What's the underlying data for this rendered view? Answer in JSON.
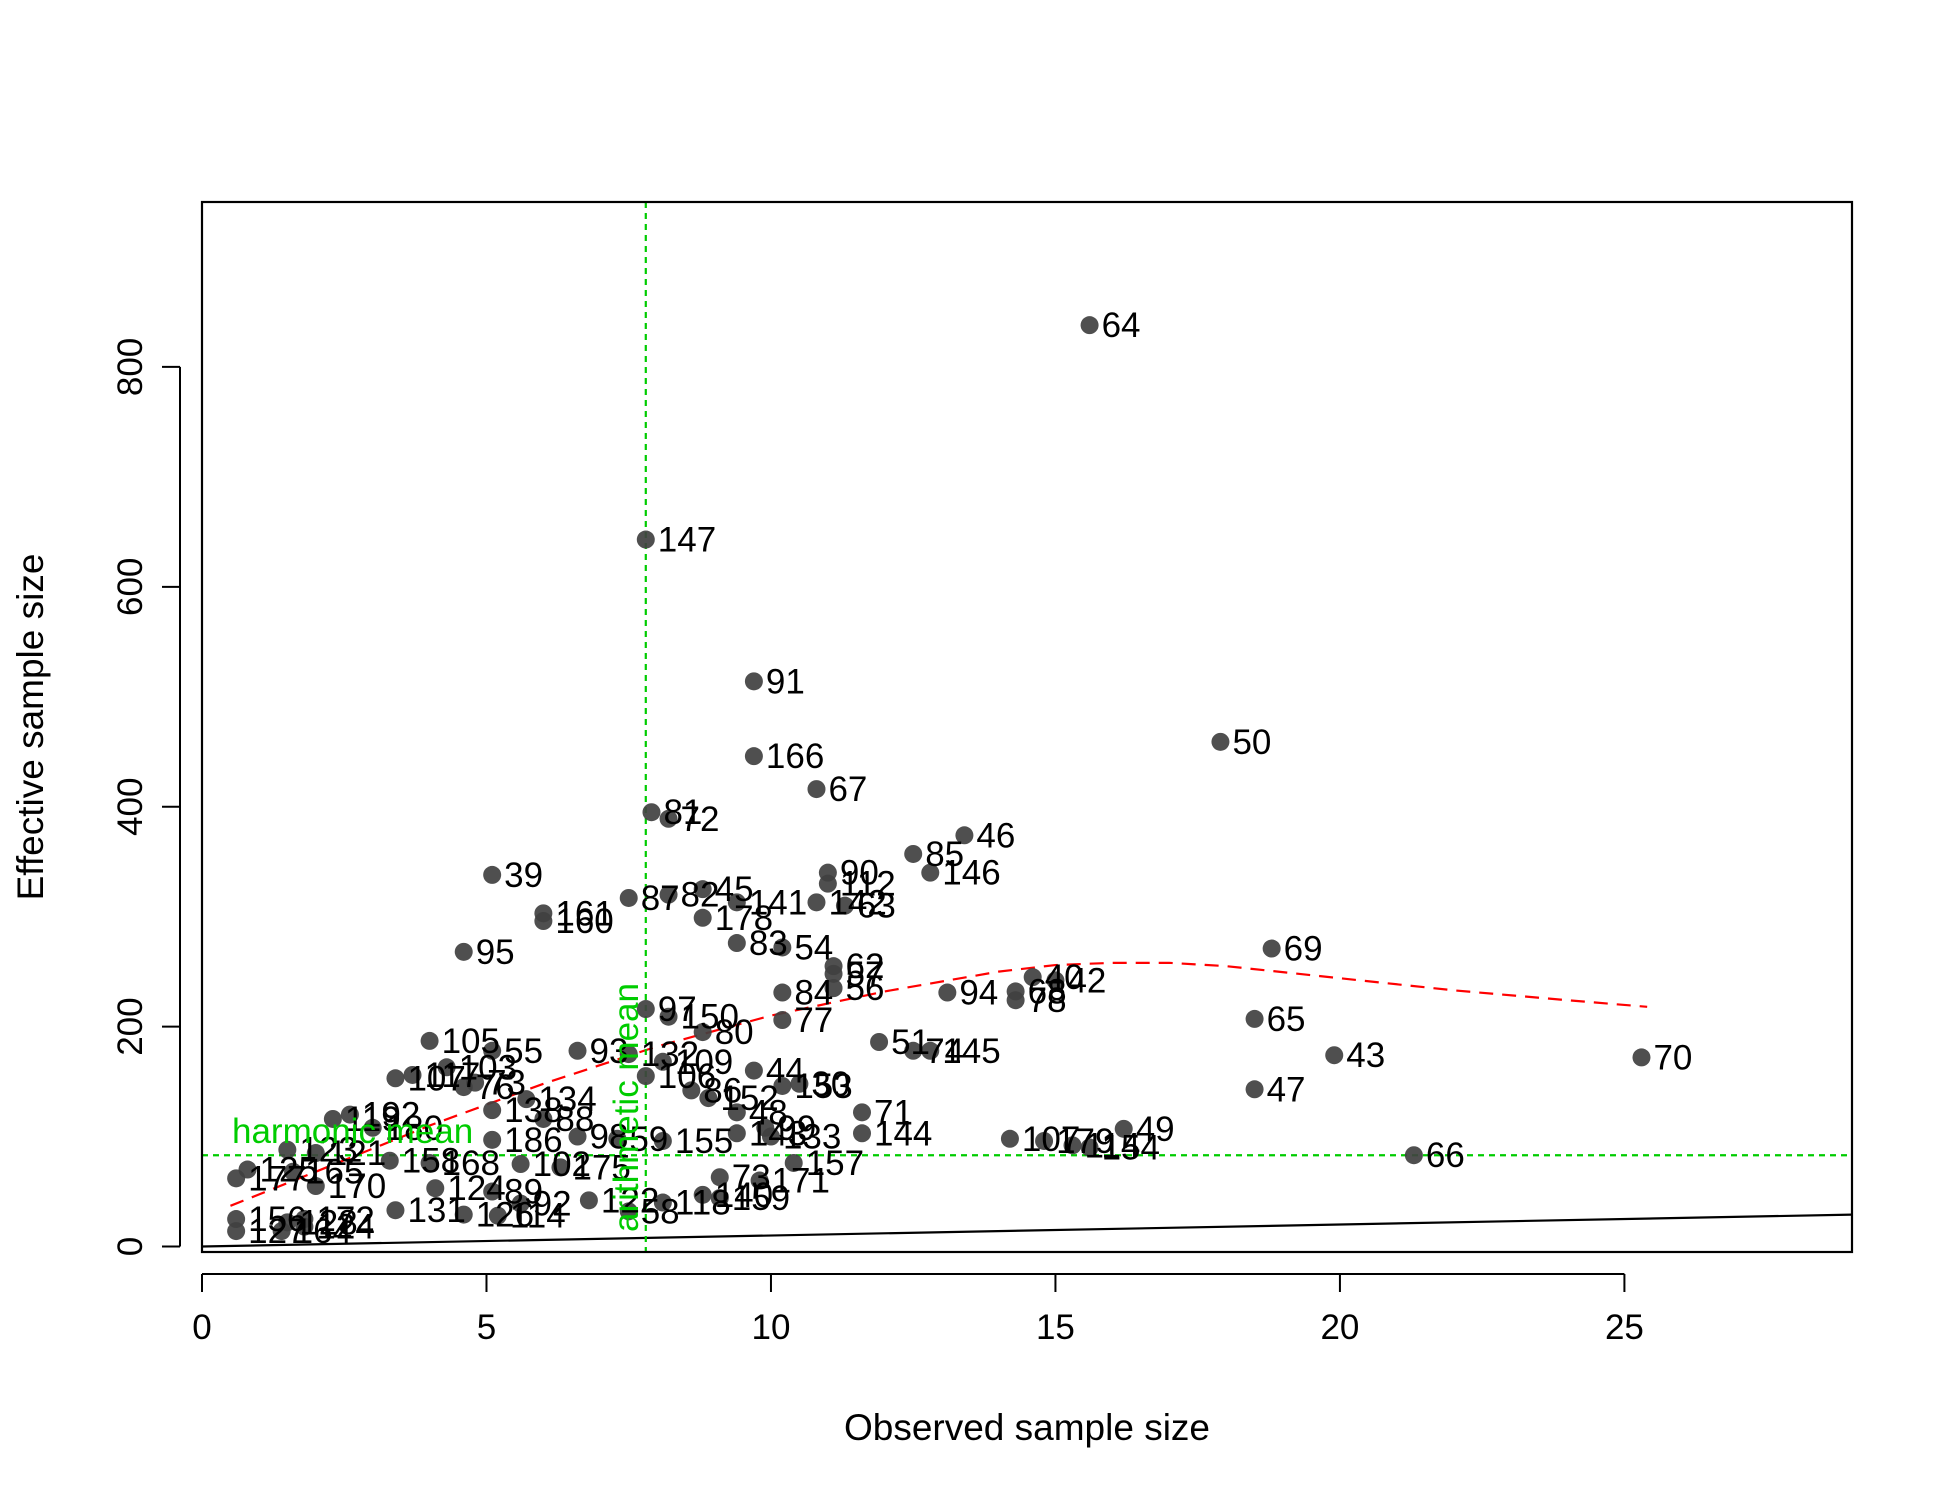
{
  "chart_data": {
    "type": "scatter",
    "title": "",
    "xlabel": "Observed sample size",
    "ylabel": "Effective sample size",
    "xlim": [
      0,
      29
    ],
    "ylim": [
      -5,
      950
    ],
    "x_ticks": [
      0,
      5,
      10,
      15,
      20,
      25
    ],
    "y_ticks": [
      0,
      200,
      400,
      600,
      800
    ],
    "grid": false,
    "point_color": "#404040",
    "points": [
      {
        "x": 15.6,
        "y": 838,
        "label": "64"
      },
      {
        "x": 7.8,
        "y": 643,
        "label": "147"
      },
      {
        "x": 9.7,
        "y": 514,
        "label": "91"
      },
      {
        "x": 17.9,
        "y": 459,
        "label": "50"
      },
      {
        "x": 9.7,
        "y": 446,
        "label": "166"
      },
      {
        "x": 10.8,
        "y": 416,
        "label": "67"
      },
      {
        "x": 7.9,
        "y": 395,
        "label": "81"
      },
      {
        "x": 8.2,
        "y": 389,
        "label": "72"
      },
      {
        "x": 13.4,
        "y": 374,
        "label": "46"
      },
      {
        "x": 12.5,
        "y": 357,
        "label": "85"
      },
      {
        "x": 12.8,
        "y": 340,
        "label": "146"
      },
      {
        "x": 5.1,
        "y": 338,
        "label": "39"
      },
      {
        "x": 11.0,
        "y": 340,
        "label": "90"
      },
      {
        "x": 11.0,
        "y": 330,
        "label": "112"
      },
      {
        "x": 8.8,
        "y": 325,
        "label": "45"
      },
      {
        "x": 8.2,
        "y": 320,
        "label": "82"
      },
      {
        "x": 7.5,
        "y": 317,
        "label": "87"
      },
      {
        "x": 9.4,
        "y": 313,
        "label": "141"
      },
      {
        "x": 10.8,
        "y": 313,
        "label": "142"
      },
      {
        "x": 11.3,
        "y": 310,
        "label": "63"
      },
      {
        "x": 6.0,
        "y": 303,
        "label": "161"
      },
      {
        "x": 6.0,
        "y": 296,
        "label": "160"
      },
      {
        "x": 8.8,
        "y": 299,
        "label": "178"
      },
      {
        "x": 9.4,
        "y": 276,
        "label": "83"
      },
      {
        "x": 10.2,
        "y": 272,
        "label": "54"
      },
      {
        "x": 18.8,
        "y": 271,
        "label": "69"
      },
      {
        "x": 4.6,
        "y": 268,
        "label": "95"
      },
      {
        "x": 11.1,
        "y": 255,
        "label": "62"
      },
      {
        "x": 11.1,
        "y": 248,
        "label": "57"
      },
      {
        "x": 14.6,
        "y": 245,
        "label": "40"
      },
      {
        "x": 15.0,
        "y": 242,
        "label": "42"
      },
      {
        "x": 11.1,
        "y": 235,
        "label": "56"
      },
      {
        "x": 10.2,
        "y": 231,
        "label": "84"
      },
      {
        "x": 13.1,
        "y": 231,
        "label": "94"
      },
      {
        "x": 14.3,
        "y": 232,
        "label": "68"
      },
      {
        "x": 14.3,
        "y": 224,
        "label": "78"
      },
      {
        "x": 7.8,
        "y": 216,
        "label": "97"
      },
      {
        "x": 8.2,
        "y": 209,
        "label": "150"
      },
      {
        "x": 18.5,
        "y": 207,
        "label": "65"
      },
      {
        "x": 10.2,
        "y": 206,
        "label": "77"
      },
      {
        "x": 8.8,
        "y": 195,
        "label": "80"
      },
      {
        "x": 4.0,
        "y": 187,
        "label": "105"
      },
      {
        "x": 11.9,
        "y": 186,
        "label": "51"
      },
      {
        "x": 12.5,
        "y": 178,
        "label": "74"
      },
      {
        "x": 12.8,
        "y": 178,
        "label": "145"
      },
      {
        "x": 5.1,
        "y": 178,
        "label": "55"
      },
      {
        "x": 6.6,
        "y": 178,
        "label": "93"
      },
      {
        "x": 7.5,
        "y": 175,
        "label": "132"
      },
      {
        "x": 19.9,
        "y": 174,
        "label": "43"
      },
      {
        "x": 25.3,
        "y": 172,
        "label": "70"
      },
      {
        "x": 8.1,
        "y": 168,
        "label": "109"
      },
      {
        "x": 4.3,
        "y": 163,
        "label": "103"
      },
      {
        "x": 9.7,
        "y": 160,
        "label": "44"
      },
      {
        "x": 7.8,
        "y": 155,
        "label": "106"
      },
      {
        "x": 3.7,
        "y": 156,
        "label": "117"
      },
      {
        "x": 3.4,
        "y": 153,
        "label": "107"
      },
      {
        "x": 4.8,
        "y": 149,
        "label": "73"
      },
      {
        "x": 10.5,
        "y": 148,
        "label": "30"
      },
      {
        "x": 10.2,
        "y": 146,
        "label": "153"
      },
      {
        "x": 4.6,
        "y": 145,
        "label": "76"
      },
      {
        "x": 18.5,
        "y": 143,
        "label": "47"
      },
      {
        "x": 8.6,
        "y": 142,
        "label": "86"
      },
      {
        "x": 8.9,
        "y": 135,
        "label": "152"
      },
      {
        "x": 5.7,
        "y": 134,
        "label": "134"
      },
      {
        "x": 11.6,
        "y": 122,
        "label": "71"
      },
      {
        "x": 9.4,
        "y": 122,
        "label": "48"
      },
      {
        "x": 5.1,
        "y": 124,
        "label": "138"
      },
      {
        "x": 2.6,
        "y": 120,
        "label": "192"
      },
      {
        "x": 2.3,
        "y": 116,
        "label": "119"
      },
      {
        "x": 6.0,
        "y": 116,
        "label": "88"
      },
      {
        "x": 3.0,
        "y": 108,
        "label": "180"
      },
      {
        "x": 9.9,
        "y": 108,
        "label": "99"
      },
      {
        "x": 16.2,
        "y": 107,
        "label": "49"
      },
      {
        "x": 11.6,
        "y": 103,
        "label": "144"
      },
      {
        "x": 9.4,
        "y": 103,
        "label": "143"
      },
      {
        "x": 10.0,
        "y": 100,
        "label": "133"
      },
      {
        "x": 6.6,
        "y": 100,
        "label": "98"
      },
      {
        "x": 7.3,
        "y": 98,
        "label": "59"
      },
      {
        "x": 14.2,
        "y": 98,
        "label": "107"
      },
      {
        "x": 14.8,
        "y": 96,
        "label": "179"
      },
      {
        "x": 15.3,
        "y": 92,
        "label": "114"
      },
      {
        "x": 15.6,
        "y": 90,
        "label": "154"
      },
      {
        "x": 8.1,
        "y": 96,
        "label": "155"
      },
      {
        "x": 5.1,
        "y": 97,
        "label": "186"
      },
      {
        "x": 1.5,
        "y": 88,
        "label": "123"
      },
      {
        "x": 2.0,
        "y": 85,
        "label": "121"
      },
      {
        "x": 21.3,
        "y": 83,
        "label": "66"
      },
      {
        "x": 10.4,
        "y": 76,
        "label": "157"
      },
      {
        "x": 3.3,
        "y": 78,
        "label": "158"
      },
      {
        "x": 4.0,
        "y": 76,
        "label": "168"
      },
      {
        "x": 5.6,
        "y": 75,
        "label": "102"
      },
      {
        "x": 6.3,
        "y": 72,
        "label": "175"
      },
      {
        "x": 0.8,
        "y": 70,
        "label": "125"
      },
      {
        "x": 1.6,
        "y": 68,
        "label": "165"
      },
      {
        "x": 0.6,
        "y": 62,
        "label": "177"
      },
      {
        "x": 9.1,
        "y": 63,
        "label": "73"
      },
      {
        "x": 9.8,
        "y": 60,
        "label": "171"
      },
      {
        "x": 2.0,
        "y": 55,
        "label": "170"
      },
      {
        "x": 4.1,
        "y": 53,
        "label": "124"
      },
      {
        "x": 5.1,
        "y": 50,
        "label": "89"
      },
      {
        "x": 6.8,
        "y": 42,
        "label": "122"
      },
      {
        "x": 8.8,
        "y": 47,
        "label": "140"
      },
      {
        "x": 9.1,
        "y": 44,
        "label": "159"
      },
      {
        "x": 8.1,
        "y": 40,
        "label": "118"
      },
      {
        "x": 5.6,
        "y": 39,
        "label": "92"
      },
      {
        "x": 3.4,
        "y": 33,
        "label": "131"
      },
      {
        "x": 7.5,
        "y": 32,
        "label": "58"
      },
      {
        "x": 4.6,
        "y": 29,
        "label": "126"
      },
      {
        "x": 5.2,
        "y": 28,
        "label": "114"
      },
      {
        "x": 0.6,
        "y": 25,
        "label": "156"
      },
      {
        "x": 1.8,
        "y": 25,
        "label": "172"
      },
      {
        "x": 0.6,
        "y": 14,
        "label": "127"
      },
      {
        "x": 1.4,
        "y": 14,
        "label": "164"
      },
      {
        "x": 1.8,
        "y": 18,
        "label": "124"
      },
      {
        "x": 1.5,
        "y": 22,
        "label": "128"
      }
    ],
    "lines": [
      {
        "name": "",
        "color": "#ff0000",
        "style": "dashed",
        "x": [
          0.5,
          2,
          4,
          6,
          8,
          10,
          12,
          14,
          15,
          16,
          17,
          18,
          20,
          22,
          24,
          25.4
        ],
        "y": [
          37,
          68,
          110,
          148,
          182,
          210,
          232,
          250,
          256,
          258,
          258,
          255,
          244,
          233,
          224,
          218
        ]
      },
      {
        "name": "",
        "color": "#000000",
        "style": "solid",
        "x": [
          0,
          29
        ],
        "y": [
          0,
          29
        ]
      }
    ],
    "reference_lines": [
      {
        "orientation": "horizontal",
        "value": 83,
        "label": "harmonic mean",
        "color": "#00cc00"
      },
      {
        "orientation": "vertical",
        "value": 7.8,
        "label": "arithmetic mean",
        "color": "#00cc00"
      }
    ]
  }
}
